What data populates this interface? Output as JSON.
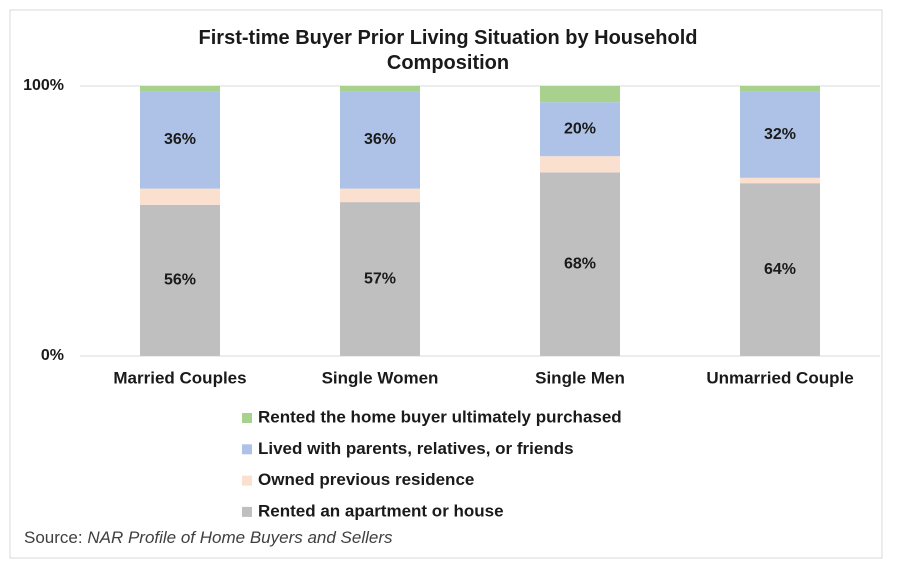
{
  "chart_data": {
    "type": "stacked_bar",
    "title": "First-time Buyer Prior Living Situation by Household Composition",
    "categories": [
      "Married Couples",
      "Single Women",
      "Single Men",
      "Unmarried Couple"
    ],
    "series": [
      {
        "name": "Rented an apartment or house",
        "color": "#bfbfbf",
        "values": [
          56,
          57,
          68,
          64
        ],
        "value_labels": [
          "56%",
          "57%",
          "68%",
          "64%"
        ]
      },
      {
        "name": "Owned previous residence",
        "color": "#fbe0d0",
        "values": [
          6,
          5,
          6,
          2
        ]
      },
      {
        "name": "Lived with parents, relatives, or friends",
        "color": "#adc2e6",
        "values": [
          36,
          36,
          20,
          32
        ],
        "value_labels": [
          "36%",
          "36%",
          "20%",
          "32%"
        ]
      },
      {
        "name": "Rented the home buyer ultimately purchased",
        "color": "#a9d18e",
        "values": [
          2,
          2,
          6,
          2
        ]
      }
    ],
    "ylim": [
      0,
      100
    ],
    "yticks": [
      {
        "value": 0,
        "label": "0%"
      },
      {
        "value": 100,
        "label": "100%"
      }
    ],
    "source_label": "Source:",
    "source_text": "NAR Profile of Home Buyers and Sellers"
  }
}
